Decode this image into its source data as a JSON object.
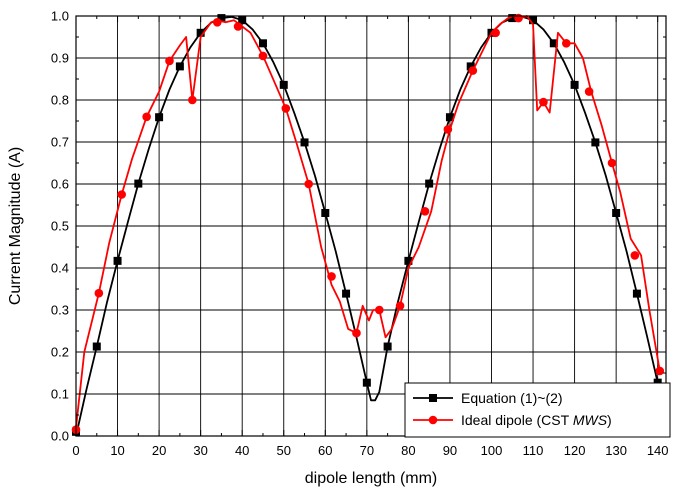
{
  "chart_data": {
    "type": "line",
    "title": "",
    "xlabel": "dipole length (mm)",
    "ylabel": "Current Magnitude (A)",
    "xlim": [
      0,
      142
    ],
    "ylim": [
      0,
      1.0
    ],
    "xticks": [
      0,
      10,
      20,
      30,
      40,
      50,
      60,
      70,
      80,
      90,
      100,
      110,
      120,
      130,
      140
    ],
    "yticks": [
      0.0,
      0.1,
      0.2,
      0.3,
      0.4,
      0.5,
      0.6,
      0.7,
      0.8,
      0.9,
      1.0
    ],
    "grid": true,
    "legend_position": "bottom-right",
    "series": [
      {
        "name": "Equation (1)~(2)",
        "legend_parts": [
          {
            "text": "Equation (1)~(2)",
            "italic": false
          }
        ],
        "color": "#000000",
        "marker": "square",
        "line_x": [
          0,
          2.5,
          5,
          7.5,
          10,
          12.5,
          15,
          17.5,
          20,
          22.5,
          25,
          27.5,
          30,
          32.5,
          35,
          37.5,
          40,
          42.5,
          45,
          47.5,
          50,
          52.5,
          55,
          57.5,
          60,
          62.5,
          65,
          67.5,
          70,
          71,
          72,
          73,
          75,
          77.5,
          80,
          82.5,
          85,
          87.5,
          90,
          92.5,
          95,
          97.5,
          100,
          102.5,
          105,
          107.5,
          110,
          112.5,
          115,
          117.5,
          120,
          122.5,
          125,
          127.5,
          130,
          132.5,
          135,
          137.5,
          140
        ],
        "line_y": [
          0.0,
          0.11,
          0.213,
          0.32,
          0.417,
          0.51,
          0.601,
          0.683,
          0.759,
          0.825,
          0.88,
          0.925,
          0.96,
          0.984,
          0.995,
          0.998,
          0.99,
          0.968,
          0.935,
          0.89,
          0.836,
          0.77,
          0.699,
          0.62,
          0.531,
          0.44,
          0.339,
          0.235,
          0.127,
          0.085,
          0.085,
          0.105,
          0.213,
          0.32,
          0.417,
          0.51,
          0.601,
          0.683,
          0.759,
          0.825,
          0.88,
          0.925,
          0.96,
          0.984,
          0.995,
          0.998,
          0.99,
          0.968,
          0.935,
          0.89,
          0.836,
          0.77,
          0.699,
          0.62,
          0.531,
          0.44,
          0.339,
          0.235,
          0.127
        ],
        "marker_x": [
          0,
          5,
          10,
          15,
          20,
          25,
          30,
          35,
          40,
          45,
          50,
          55,
          60,
          65,
          70,
          75,
          80,
          85,
          90,
          95,
          100,
          105,
          110,
          115,
          120,
          125,
          130,
          135,
          140
        ],
        "marker_y": [
          0.01,
          0.213,
          0.417,
          0.601,
          0.759,
          0.88,
          0.96,
          0.995,
          0.99,
          0.935,
          0.836,
          0.699,
          0.531,
          0.339,
          0.127,
          0.213,
          0.417,
          0.601,
          0.759,
          0.88,
          0.96,
          0.995,
          0.99,
          0.935,
          0.836,
          0.699,
          0.531,
          0.339,
          0.127
        ]
      },
      {
        "name": "Ideal dipole (CST MWS)",
        "legend_parts": [
          {
            "text": "Ideal dipole (CST ",
            "italic": false
          },
          {
            "text": "MWS",
            "italic": true
          },
          {
            "text": ")",
            "italic": false
          }
        ],
        "color": "#ff0000",
        "marker": "circle",
        "line_x": [
          0,
          2,
          5.5,
          8,
          11,
          13.5,
          17,
          20,
          22.5,
          25,
          26.5,
          28,
          30,
          32.5,
          34,
          36,
          38,
          40,
          42,
          45,
          47,
          50.5,
          53,
          56,
          59,
          61.5,
          63.5,
          65.5,
          67.5,
          69,
          70.5,
          71.5,
          73,
          74.5,
          76,
          78,
          80,
          82.5,
          85.5,
          88,
          90,
          92,
          95.5,
          98,
          100,
          102,
          104,
          105.5,
          107,
          108.5,
          110,
          111,
          112.5,
          114,
          116,
          118,
          120,
          122,
          124,
          126.5,
          129,
          131,
          133.5,
          136,
          138,
          140.5
        ],
        "line_y": [
          0.02,
          0.2,
          0.34,
          0.46,
          0.575,
          0.66,
          0.76,
          0.82,
          0.893,
          0.93,
          0.95,
          0.8,
          0.95,
          0.985,
          0.99,
          0.985,
          0.99,
          0.975,
          0.96,
          0.905,
          0.86,
          0.78,
          0.7,
          0.6,
          0.45,
          0.36,
          0.32,
          0.255,
          0.245,
          0.31,
          0.275,
          0.3,
          0.3,
          0.235,
          0.255,
          0.31,
          0.4,
          0.45,
          0.535,
          0.655,
          0.73,
          0.79,
          0.87,
          0.92,
          0.96,
          0.98,
          0.995,
          1.0,
          0.995,
          1.0,
          0.98,
          0.775,
          0.795,
          0.77,
          0.96,
          0.935,
          0.935,
          0.9,
          0.82,
          0.74,
          0.65,
          0.58,
          0.47,
          0.43,
          0.3,
          0.155
        ],
        "marker_x": [
          0,
          5.5,
          11,
          17,
          22.5,
          28,
          34,
          39,
          45,
          50.5,
          56,
          61.5,
          67.5,
          73,
          78,
          84,
          89.5,
          95.5,
          101,
          106.5,
          112.5,
          118,
          123.5,
          129,
          134.5,
          140.5
        ],
        "marker_y": [
          0.015,
          0.34,
          0.575,
          0.76,
          0.893,
          0.8,
          0.985,
          0.975,
          0.905,
          0.78,
          0.6,
          0.38,
          0.245,
          0.3,
          0.31,
          0.535,
          0.73,
          0.87,
          0.96,
          0.995,
          0.795,
          0.935,
          0.82,
          0.65,
          0.43,
          0.155
        ]
      }
    ]
  }
}
